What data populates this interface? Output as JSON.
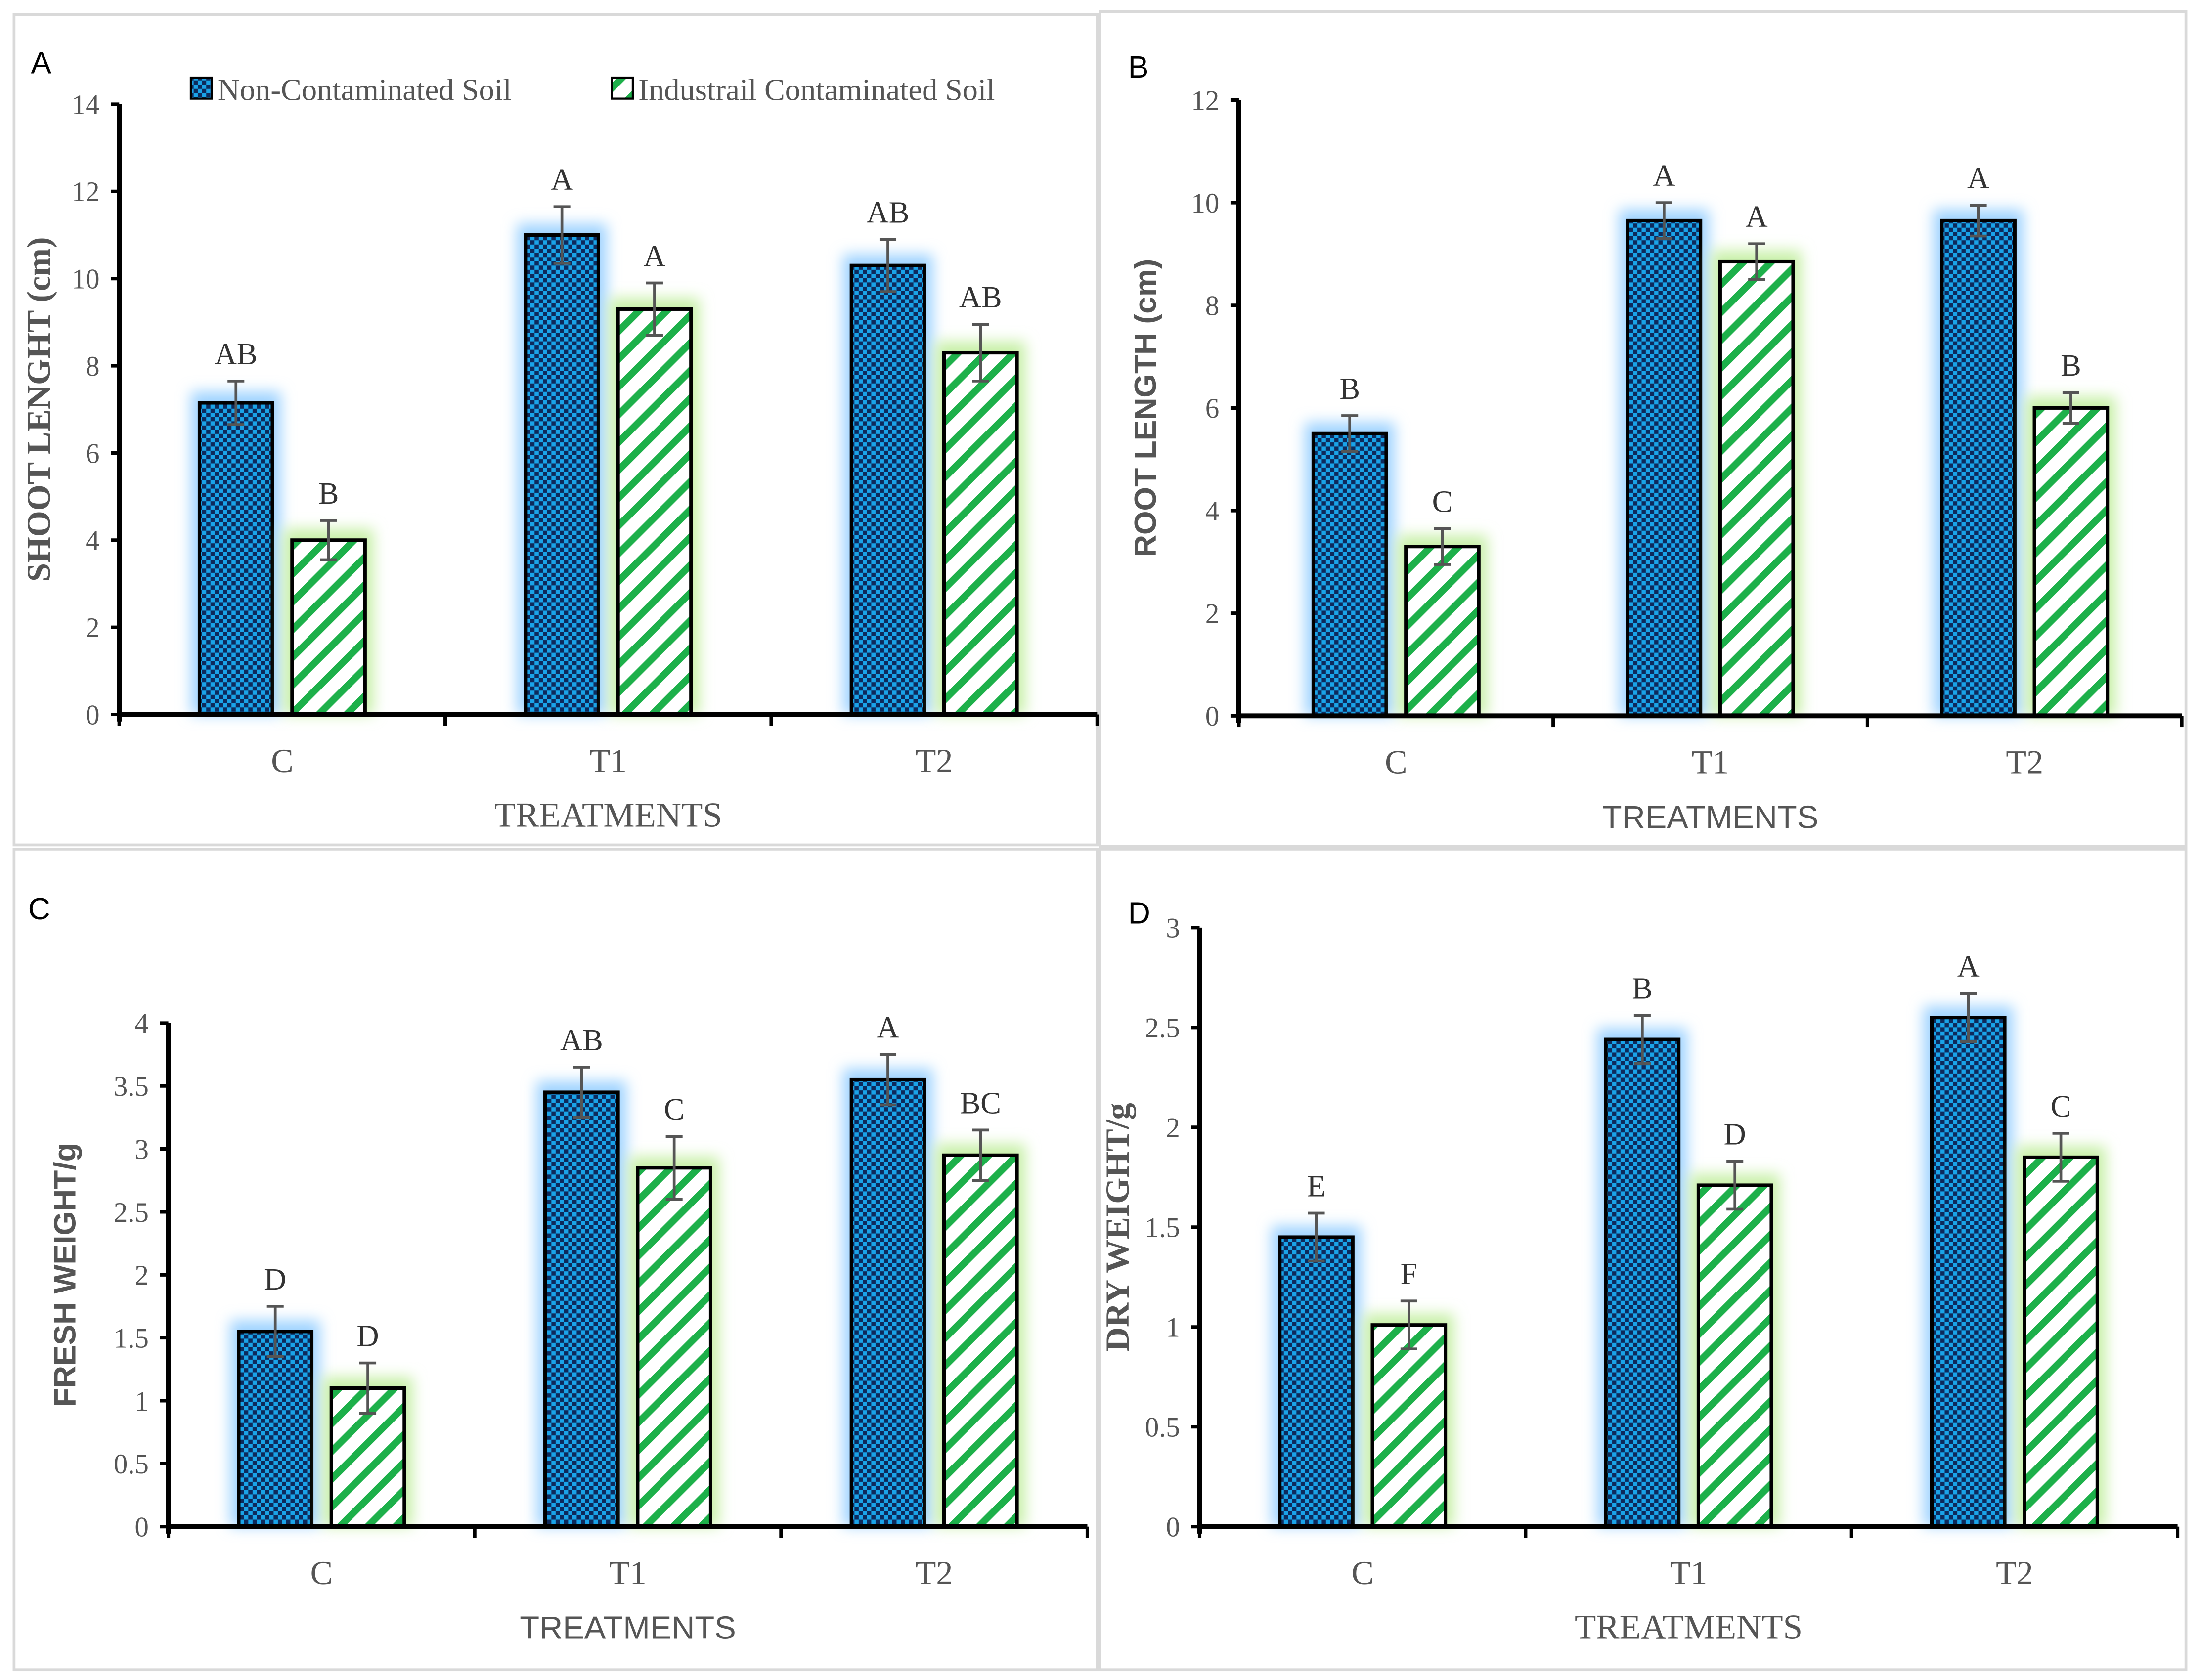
{
  "colors": {
    "nc_dark": "#0d2a5c",
    "nc_light": "#1aa3e8",
    "ic_stripe": "#1db04a",
    "glow_blue": "#9fd3ff",
    "glow_green": "#c8f0a8"
  },
  "legend": [
    "Non-Contaminated Soil",
    "Industrail Contaminated Soil"
  ],
  "chart_data": [
    {
      "panel": "A",
      "type": "bar",
      "categories": [
        "C",
        "T1",
        "T2"
      ],
      "xlabel": "TREATMENTS",
      "ylabel": "SHOOT LENGHT (cm)",
      "ylim": [
        0,
        14
      ],
      "yticks": [
        0,
        2,
        4,
        6,
        8,
        10,
        12,
        14
      ],
      "yticklabels": [
        "0",
        "2",
        "4",
        "6",
        "8",
        "10",
        "12",
        "14"
      ],
      "series": [
        {
          "name": "Non-Contaminated Soil",
          "values": [
            7.15,
            11.0,
            10.3
          ],
          "errors": [
            0.5,
            0.65,
            0.6
          ],
          "letters": [
            "AB",
            "A",
            "AB"
          ]
        },
        {
          "name": "Industrail Contaminated Soil",
          "values": [
            4.0,
            9.3,
            8.3
          ],
          "errors": [
            0.45,
            0.6,
            0.65
          ],
          "letters": [
            "B",
            "A",
            "AB"
          ]
        }
      ]
    },
    {
      "panel": "B",
      "type": "bar",
      "categories": [
        "C",
        "T1",
        "T2"
      ],
      "xlabel": "TREATMENTS",
      "ylabel": "ROOT LENGTH (cm)",
      "ylim": [
        0,
        12
      ],
      "yticks": [
        0,
        2,
        4,
        6,
        8,
        10,
        12
      ],
      "yticklabels": [
        "0",
        "2",
        "4",
        "6",
        "8",
        "10",
        "12"
      ],
      "series": [
        {
          "name": "Non-Contaminated Soil",
          "values": [
            5.5,
            9.65,
            9.65
          ],
          "errors": [
            0.35,
            0.35,
            0.3
          ],
          "letters": [
            "B",
            "A",
            "A"
          ]
        },
        {
          "name": "Industrail Contaminated Soil",
          "values": [
            3.3,
            8.85,
            6.0
          ],
          "errors": [
            0.35,
            0.35,
            0.3
          ],
          "letters": [
            "C",
            "A",
            "B"
          ]
        }
      ]
    },
    {
      "panel": "C",
      "type": "bar",
      "categories": [
        "C",
        "T1",
        "T2"
      ],
      "xlabel": "TREATMENTS",
      "ylabel": "FRESH WEIGHT/g",
      "ylim": [
        0,
        4
      ],
      "yticks": [
        0,
        0.5,
        1,
        1.5,
        2,
        2.5,
        3,
        3.5,
        4
      ],
      "yticklabels": [
        "0",
        "0.5",
        "1",
        "1.5",
        "2",
        "2.5",
        "3",
        "3.5",
        "4"
      ],
      "series": [
        {
          "name": "Non-Contaminated Soil",
          "values": [
            1.55,
            3.45,
            3.55
          ],
          "errors": [
            0.2,
            0.2,
            0.2
          ],
          "letters": [
            "D",
            "AB",
            "A"
          ]
        },
        {
          "name": "Industrail Contaminated Soil",
          "values": [
            1.1,
            2.85,
            2.95
          ],
          "errors": [
            0.2,
            0.25,
            0.2
          ],
          "letters": [
            "D",
            "C",
            "BC"
          ]
        }
      ]
    },
    {
      "panel": "D",
      "type": "bar",
      "categories": [
        "C",
        "T1",
        "T2"
      ],
      "xlabel": "TREATMENTS",
      "ylabel": "DRY WEIGHT/g",
      "ylim": [
        0,
        3
      ],
      "yticks": [
        0,
        0.5,
        1,
        1.5,
        2,
        2.5,
        3
      ],
      "yticklabels": [
        "0",
        "0.5",
        "1",
        "1.5",
        "2",
        "2.5",
        "3"
      ],
      "series": [
        {
          "name": "Non-Contaminated Soil",
          "values": [
            1.45,
            2.44,
            2.55
          ],
          "errors": [
            0.12,
            0.12,
            0.12
          ],
          "letters": [
            "E",
            "B",
            "A"
          ]
        },
        {
          "name": "Industrail Contaminated Soil",
          "values": [
            1.01,
            1.71,
            1.85
          ],
          "errors": [
            0.12,
            0.12,
            0.12
          ],
          "letters": [
            "F",
            "D",
            "C"
          ]
        }
      ]
    }
  ]
}
